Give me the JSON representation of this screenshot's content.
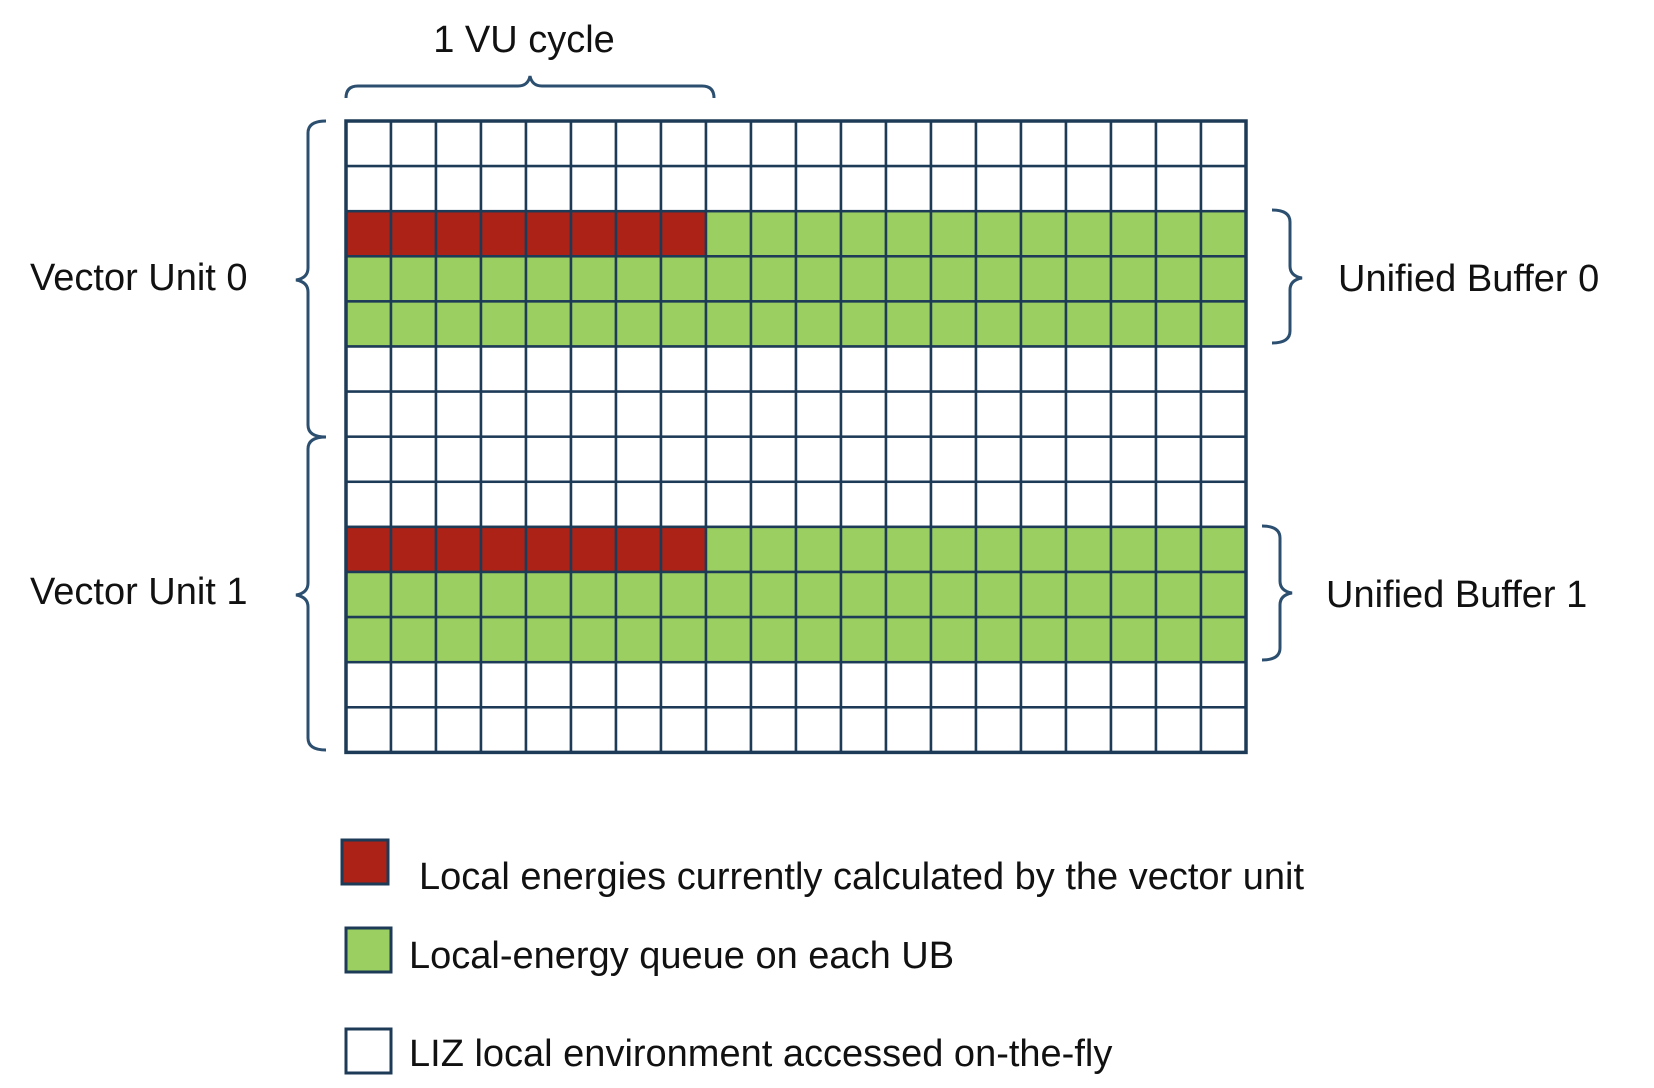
{
  "labels": {
    "cycle": "1 VU cycle",
    "vector_unit_0": "Vector Unit 0",
    "vector_unit_1": "Vector Unit 1",
    "unified_buffer_0": "Unified Buffer 0",
    "unified_buffer_1": "Unified Buffer 1"
  },
  "grid": {
    "rows": 14,
    "cols": 20,
    "cycle_cols": 8,
    "row_fill": [
      "empty",
      "empty",
      "compute",
      "queue",
      "queue",
      "empty",
      "empty",
      "empty",
      "empty",
      "compute",
      "queue",
      "queue",
      "empty",
      "empty"
    ]
  },
  "colors": {
    "compute": "#ac2216",
    "queue": "#9ccf62",
    "empty": "#ffffff",
    "grid_line": "#1d3a57",
    "brace": "#2c4f70"
  },
  "legend": [
    {
      "key": "compute",
      "text": "Local energies currently calculated by the vector unit"
    },
    {
      "key": "queue",
      "text": "Local-energy queue on each UB"
    },
    {
      "key": "empty",
      "text": "LIZ local environment accessed on-the-fly"
    }
  ]
}
